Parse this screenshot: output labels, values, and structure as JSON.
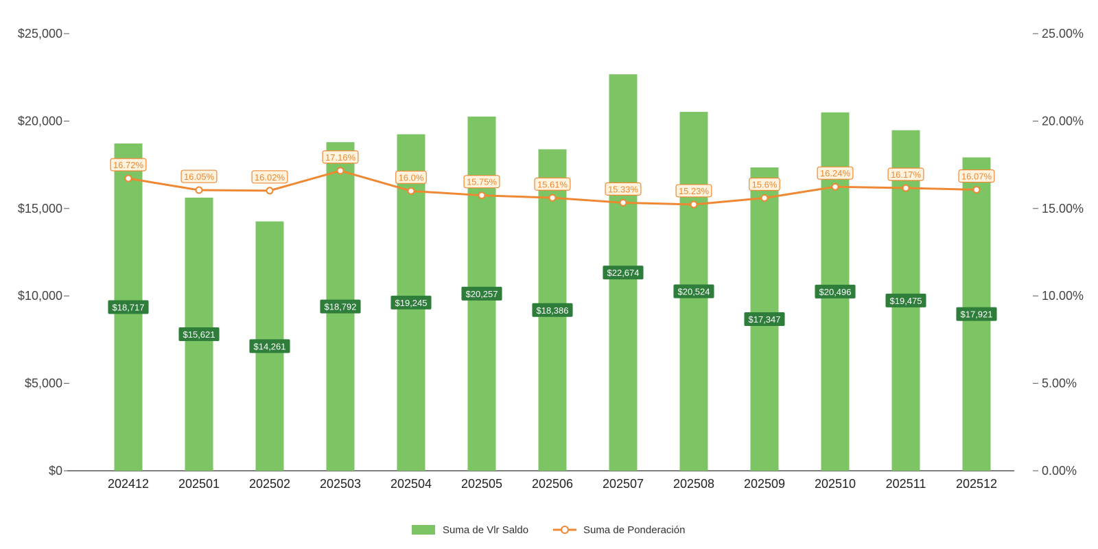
{
  "chart_data": {
    "type": "bar",
    "title": "",
    "xlabel": "",
    "ylabel": "",
    "categories": [
      "202412",
      "202501",
      "202502",
      "202503",
      "202504",
      "202505",
      "202506",
      "202507",
      "202508",
      "202509",
      "202510",
      "202511",
      "202512"
    ],
    "series": [
      {
        "name": "Suma de Vlr Saldo",
        "kind": "bar",
        "axis": "left",
        "values": [
          18717,
          15621,
          14261,
          18792,
          19245,
          20257,
          18386,
          22674,
          20524,
          17347,
          20496,
          19475,
          17921
        ],
        "labels": [
          "$18,717",
          "$15,621",
          "$14,261",
          "$18,792",
          "$19,245",
          "$20,257",
          "$18,386",
          "$22,674",
          "$20,524",
          "$17,347",
          "$20,496",
          "$19,475",
          "$17,921"
        ]
      },
      {
        "name": "Suma de Ponderación",
        "kind": "line",
        "axis": "right",
        "values": [
          16.72,
          16.05,
          16.02,
          17.16,
          16.0,
          15.75,
          15.61,
          15.33,
          15.23,
          15.6,
          16.24,
          16.17,
          16.07
        ],
        "labels": [
          "16.72%",
          "16.05%",
          "16.02%",
          "17.16%",
          "16.0%",
          "15.75%",
          "15.61%",
          "15.33%",
          "15.23%",
          "15.6%",
          "16.24%",
          "16.17%",
          "16.07%"
        ]
      }
    ],
    "y_left": {
      "range": [
        0,
        25000
      ],
      "ticks": [
        0,
        5000,
        10000,
        15000,
        20000,
        25000
      ],
      "tick_labels": [
        "$0",
        "$5,000",
        "$10,000",
        "$15,000",
        "$20,000",
        "$25,000"
      ]
    },
    "y_right": {
      "range": [
        0,
        25
      ],
      "ticks": [
        0,
        5,
        10,
        15,
        20,
        25
      ],
      "tick_labels": [
        "0.00%",
        "5.00%",
        "10.00%",
        "15.00%",
        "20.00%",
        "25.00%"
      ]
    },
    "grid": false,
    "legend_position": "bottom-center",
    "colors": {
      "bar": "#7DC464",
      "bar_label_bg": "#2E7D3A",
      "line": "#EE8833",
      "line_label_bg": "#FFF3DD",
      "axis": "#555555"
    }
  }
}
